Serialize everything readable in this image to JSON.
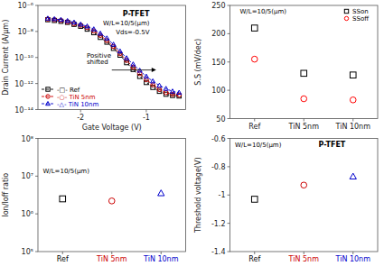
{
  "chart_data": [
    {
      "type": "line",
      "log": "y",
      "grid": false,
      "legend": "lower left",
      "x_label": "Gate Voltage (V)",
      "y_label": "Drain Current (A/μm)",
      "x": [
        -2.5,
        -2.4,
        -2.3,
        -2.2,
        -2.1,
        -2.0,
        -1.9,
        -1.8,
        -1.7,
        -1.6,
        -1.5,
        -1.4,
        -1.3,
        -1.2,
        -1.1,
        -1.0,
        -0.9,
        -0.8,
        -0.7,
        -0.6,
        -0.5
      ],
      "xlim": [
        -2.65,
        -0.4
      ],
      "xticks": [
        -2,
        -1
      ],
      "ylim": [
        1e-14,
        1e-06
      ],
      "yticks": [
        {
          "value": 1e-14,
          "label": "10⁻¹⁴"
        },
        {
          "value": 1e-12,
          "label": "10⁻¹²"
        },
        {
          "value": 1e-10,
          "label": "10⁻¹⁰"
        },
        {
          "value": 1e-08,
          "label": "10⁻⁸"
        },
        {
          "value": 1e-06,
          "label": "10⁻⁶"
        }
      ],
      "series": [
        {
          "name": "-□- Ref",
          "color": "#000000",
          "marker": "square",
          "line_style": "dashed",
          "values": [
            8e-08,
            7e-08,
            6e-08,
            5e-08,
            3.5e-08,
            2.5e-08,
            1.5e-08,
            8e-09,
            3.5e-09,
            1.5e-09,
            5e-10,
            1.5e-10,
            4e-11,
            1.2e-11,
            3.5e-12,
            1.2e-12,
            5e-13,
            2.5e-13,
            1.5e-13,
            1.2e-13,
            1.1e-13
          ]
        },
        {
          "name": "-○- TiN 5nm",
          "color": "#cc0000",
          "marker": "circle",
          "line_style": "dashed",
          "values": [
            9e-08,
            8e-08,
            7e-08,
            5.5e-08,
            4e-08,
            3e-08,
            2e-08,
            1.1e-08,
            5e-09,
            2e-09,
            7e-10,
            2e-10,
            6e-11,
            1.8e-11,
            6e-12,
            2e-12,
            8e-13,
            3.5e-13,
            2e-13,
            1.5e-13,
            1.3e-13
          ]
        },
        {
          "name": "-△- TiN 10nm",
          "color": "#0000cc",
          "marker": "triangle",
          "line_style": "dashed",
          "values": [
            1e-07,
            9e-08,
            8e-08,
            6.5e-08,
            5e-08,
            3.5e-08,
            2.5e-08,
            1.5e-08,
            7e-09,
            3e-09,
            1e-09,
            3e-10,
            9e-11,
            3e-11,
            1e-11,
            3.5e-12,
            1.5e-12,
            7e-13,
            4e-13,
            2.5e-13,
            2e-13
          ]
        }
      ],
      "annotations": [
        "Positive\nshifted",
        "P-TFET",
        "W/L=10/5(μm)",
        "Vds=-0.5V"
      ]
    },
    {
      "type": "scatter",
      "grid": false,
      "legend": "upper right",
      "y_label": "S.S (mV/dec)",
      "categories": [
        "Ref",
        "TiN 5nm",
        "TiN 10nm"
      ],
      "ylim": [
        50,
        250
      ],
      "yticks": [
        50,
        100,
        150,
        200,
        250
      ],
      "series": [
        {
          "name": "SSon",
          "color": "#000000",
          "marker": "square",
          "values": [
            210,
            130,
            127
          ]
        },
        {
          "name": "SSoff",
          "color": "#ff0000",
          "marker": "circle",
          "values": [
            155,
            85,
            83
          ]
        }
      ],
      "annotations": [
        "W/L=10/5(μm)"
      ]
    },
    {
      "type": "scatter",
      "log": "y",
      "grid": false,
      "y_label": "Ion/Ioff ratio",
      "categories": [
        "Ref",
        "TiN 5nm",
        "TiN 10nm"
      ],
      "values": [
        2500000.0,
        2200000.0,
        3500000.0
      ],
      "colors": [
        "#000000",
        "#cc0000",
        "#0000cc"
      ],
      "ylim": [
        100000.0,
        100000000.0
      ],
      "yticks": [
        {
          "value": 100000.0,
          "label": "10⁵"
        },
        {
          "value": 1000000.0,
          "label": "10⁶"
        },
        {
          "value": 10000000.0,
          "label": "10⁷"
        },
        {
          "value": 100000000.0,
          "label": "10⁸"
        }
      ],
      "annotations": [
        "W/L=10/5(μm)"
      ]
    },
    {
      "type": "scatter",
      "grid": false,
      "y_label": "Threshold voltage(V)",
      "categories": [
        "Ref",
        "TiN 5nm",
        "TiN 10nm"
      ],
      "values": [
        -1.03,
        -0.93,
        -0.87
      ],
      "colors": [
        "#000000",
        "#cc0000",
        "#0000cc"
      ],
      "ylim": [
        -1.4,
        -0.6
      ],
      "yticks": [
        -1.4,
        -1.2,
        -1.0,
        -0.8,
        -0.6
      ],
      "annotations": [
        "W/L=10/5(μm)",
        "P-TFET"
      ]
    }
  ]
}
